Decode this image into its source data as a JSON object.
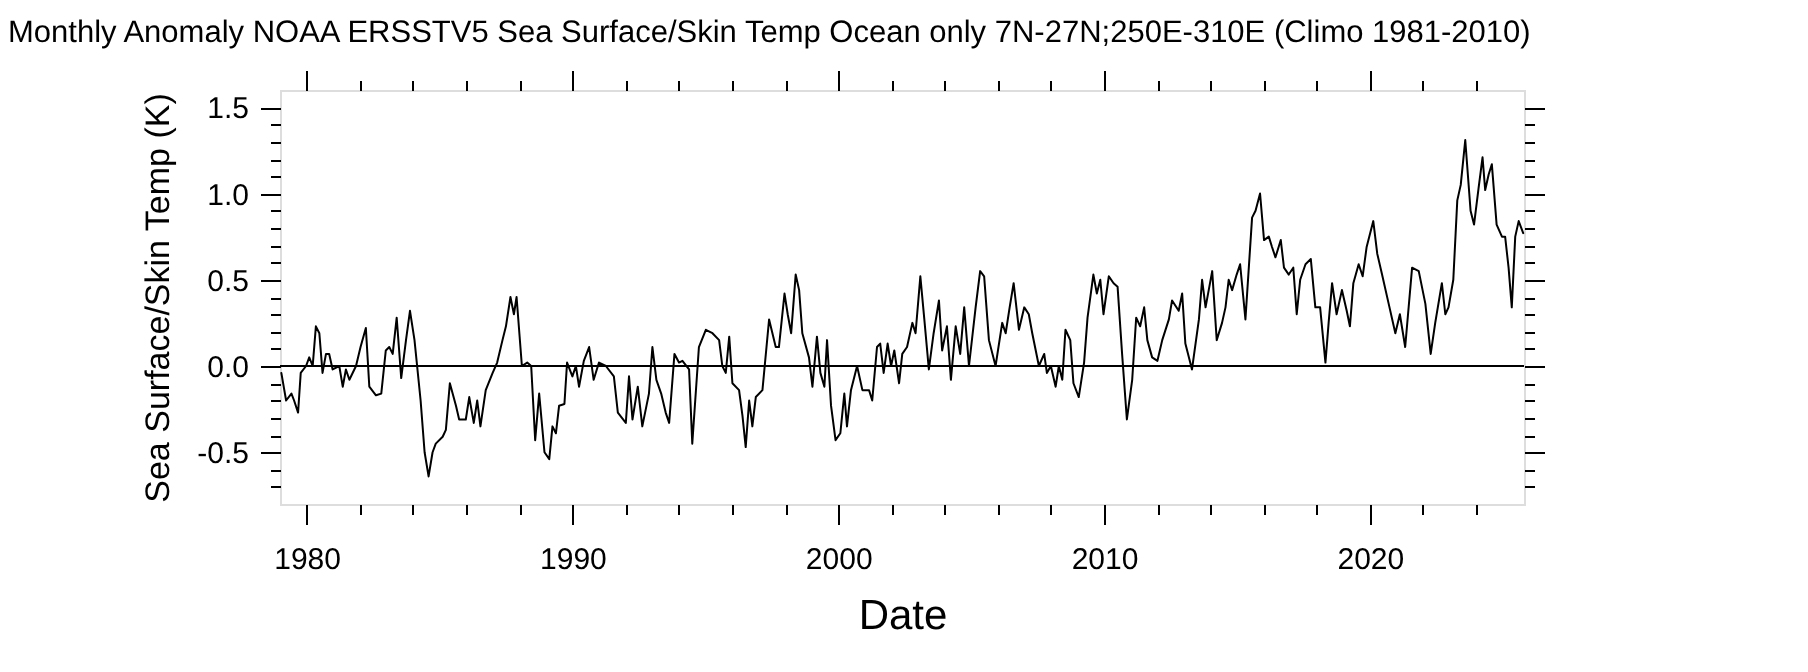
{
  "chart_data": {
    "type": "line",
    "title": "Monthly Anomaly NOAA ERSSTV5   Sea Surface/Skin Temp Ocean only 7N-27N;250E-310E (Climo 1981-2010)",
    "xlabel": "Date",
    "ylabel": "Sea Surface/Skin Temp (K)",
    "xlim": [
      1979.0,
      2025.8
    ],
    "ylim": [
      -0.8,
      1.6
    ],
    "xticks": [
      1980,
      {
        "value": 1982,
        "label": null
      },
      {
        "value": 1984,
        "label": null
      },
      {
        "value": 1986,
        "label": null
      },
      {
        "value": 1988,
        "label": null
      },
      1990,
      {
        "value": 1992,
        "label": null
      },
      {
        "value": 1994,
        "label": null
      },
      {
        "value": 1996,
        "label": null
      },
      {
        "value": 1998,
        "label": null
      },
      2000,
      {
        "value": 2002,
        "label": null
      },
      {
        "value": 2004,
        "label": null
      },
      {
        "value": 2006,
        "label": null
      },
      {
        "value": 2008,
        "label": null
      },
      2010,
      {
        "value": 2012,
        "label": null
      },
      {
        "value": 2014,
        "label": null
      },
      {
        "value": 2016,
        "label": null
      },
      {
        "value": 2018,
        "label": null
      },
      2020,
      {
        "value": 2022,
        "label": null
      },
      {
        "value": 2024,
        "label": null
      }
    ],
    "yticks": [
      {
        "value": -0.7,
        "label": null
      },
      {
        "value": -0.6,
        "label": null
      },
      {
        "value": -0.5,
        "label": "-0.5"
      },
      {
        "value": -0.4,
        "label": null
      },
      {
        "value": -0.3,
        "label": null
      },
      {
        "value": -0.2,
        "label": null
      },
      {
        "value": -0.1,
        "label": null
      },
      {
        "value": 0,
        "label": "0.0"
      },
      {
        "value": 0.1,
        "label": null
      },
      {
        "value": 0.2,
        "label": null
      },
      {
        "value": 0.3,
        "label": null
      },
      {
        "value": 0.4,
        "label": null
      },
      {
        "value": 0.5,
        "label": "0.5"
      },
      {
        "value": 0.6,
        "label": null
      },
      {
        "value": 0.7,
        "label": null
      },
      {
        "value": 0.8,
        "label": null
      },
      {
        "value": 0.9,
        "label": null
      },
      {
        "value": 1.0,
        "label": "1.0"
      },
      {
        "value": 1.1,
        "label": null
      },
      {
        "value": 1.2,
        "label": null
      },
      {
        "value": 1.3,
        "label": null
      },
      {
        "value": 1.4,
        "label": null
      },
      {
        "value": 1.5,
        "label": "1.5"
      }
    ],
    "grid": false,
    "marker": "none",
    "line_style": "solid",
    "ref_lines": [
      {
        "axis": "y",
        "value": 0,
        "label": null,
        "color": "#000000"
      }
    ],
    "series": [
      {
        "color": "#000000",
        "x": [
          1979.05,
          1979.23,
          1979.43,
          1979.53,
          1979.68,
          1979.78,
          1979.98,
          1980.1,
          1980.23,
          1980.35,
          1980.48,
          1980.6,
          1980.73,
          1980.85,
          1980.98,
          1981.23,
          1981.36,
          1981.48,
          1981.61,
          1981.86,
          1982.03,
          1982.23,
          1982.36,
          1982.61,
          1982.81,
          1982.98,
          1983.11,
          1983.24,
          1983.39,
          1983.56,
          1983.74,
          1983.89,
          1984.06,
          1984.29,
          1984.44,
          1984.59,
          1984.74,
          1984.86,
          1985.12,
          1985.24,
          1985.39,
          1985.62,
          1985.74,
          1985.99,
          1986.12,
          1986.29,
          1986.42,
          1986.54,
          1986.74,
          1987.0,
          1987.17,
          1987.37,
          1987.5,
          1987.67,
          1987.8,
          1987.9,
          1988.1,
          1988.3,
          1988.45,
          1988.6,
          1988.75,
          1988.95,
          1989.13,
          1989.25,
          1989.38,
          1989.5,
          1989.7,
          1989.8,
          1990.0,
          1990.13,
          1990.25,
          1990.43,
          1990.63,
          1990.8,
          1991.0,
          1991.26,
          1991.56,
          1991.71,
          1992.01,
          1992.13,
          1992.26,
          1992.46,
          1992.63,
          1992.88,
          1993.01,
          1993.16,
          1993.34,
          1993.51,
          1993.64,
          1993.84,
          1994.01,
          1994.14,
          1994.39,
          1994.51,
          1994.76,
          1995.02,
          1995.27,
          1995.52,
          1995.64,
          1995.77,
          1995.9,
          1996.02,
          1996.27,
          1996.4,
          1996.52,
          1996.65,
          1996.77,
          1996.9,
          1997.15,
          1997.4,
          1997.65,
          1997.77,
          1997.98,
          1998.1,
          1998.23,
          1998.4,
          1998.53,
          1998.65,
          1998.9,
          1999.03,
          1999.2,
          1999.33,
          1999.48,
          1999.58,
          1999.73,
          1999.9,
          2000.08,
          2000.23,
          2000.33,
          2000.48,
          2000.71,
          2000.91,
          2001.16,
          2001.28,
          2001.46,
          2001.58,
          2001.71,
          2001.86,
          2001.99,
          2002.11,
          2002.29,
          2002.41,
          2002.59,
          2002.79,
          2002.91,
          2003.09,
          2003.24,
          2003.41,
          2003.59,
          2003.79,
          2003.91,
          2004.09,
          2004.24,
          2004.42,
          2004.59,
          2004.74,
          2004.92,
          2005.17,
          2005.34,
          2005.49,
          2005.67,
          2005.92,
          2006.17,
          2006.3,
          2006.45,
          2006.6,
          2006.8,
          2007.0,
          2007.17,
          2007.3,
          2007.55,
          2007.75,
          2007.85,
          2008.0,
          2008.18,
          2008.3,
          2008.43,
          2008.55,
          2008.73,
          2008.85,
          2009.05,
          2009.25,
          2009.38,
          2009.6,
          2009.73,
          2009.86,
          2009.98,
          2010.18,
          2010.36,
          2010.51,
          2010.68,
          2010.86,
          2011.06,
          2011.21,
          2011.36,
          2011.51,
          2011.63,
          2011.81,
          2012.01,
          2012.19,
          2012.44,
          2012.56,
          2012.81,
          2012.94,
          2013.06,
          2013.31,
          2013.57,
          2013.69,
          2013.82,
          2014.07,
          2014.24,
          2014.44,
          2014.57,
          2014.69,
          2014.82,
          2014.99,
          2015.12,
          2015.32,
          2015.57,
          2015.7,
          2015.87,
          2016.02,
          2016.2,
          2016.32,
          2016.45,
          2016.65,
          2016.77,
          2016.95,
          2017.12,
          2017.25,
          2017.38,
          2017.58,
          2017.78,
          2017.95,
          2018.13,
          2018.33,
          2018.45,
          2018.58,
          2018.75,
          2018.95,
          2019.13,
          2019.25,
          2019.38,
          2019.58,
          2019.73,
          2019.88,
          2020.13,
          2020.28,
          2020.46,
          2020.71,
          2020.96,
          2021.13,
          2021.33,
          2021.59,
          2021.84,
          2022.09,
          2022.29,
          2022.46,
          2022.71,
          2022.84,
          2022.96,
          2023.14,
          2023.29,
          2023.42,
          2023.59,
          2023.79,
          2023.92,
          2024.09,
          2024.24,
          2024.34,
          2024.47,
          2024.59,
          2024.77,
          2024.97,
          2025.09,
          2025.22,
          2025.34,
          2025.47,
          2025.6,
          2025.77
        ],
        "values": [
          -0.04,
          -0.2,
          -0.16,
          -0.2,
          -0.27,
          -0.04,
          0.0,
          0.05,
          0.0,
          0.23,
          0.19,
          -0.04,
          0.07,
          0.07,
          -0.02,
          0.0,
          -0.12,
          -0.02,
          -0.08,
          0.0,
          0.11,
          0.22,
          -0.12,
          -0.17,
          -0.16,
          0.09,
          0.11,
          0.07,
          0.28,
          -0.07,
          0.15,
          0.32,
          0.15,
          -0.2,
          -0.5,
          -0.64,
          -0.5,
          -0.45,
          -0.41,
          -0.37,
          -0.1,
          -0.23,
          -0.31,
          -0.31,
          -0.18,
          -0.33,
          -0.2,
          -0.35,
          -0.14,
          -0.04,
          0.02,
          0.15,
          0.23,
          0.4,
          0.3,
          0.4,
          0.0,
          0.02,
          0.0,
          -0.43,
          -0.16,
          -0.5,
          -0.54,
          -0.35,
          -0.39,
          -0.23,
          -0.22,
          0.02,
          -0.06,
          0.0,
          -0.12,
          0.03,
          0.11,
          -0.08,
          0.02,
          0.0,
          -0.06,
          -0.27,
          -0.33,
          -0.06,
          -0.31,
          -0.12,
          -0.35,
          -0.16,
          0.11,
          -0.08,
          -0.16,
          -0.27,
          -0.33,
          0.07,
          0.02,
          0.03,
          -0.02,
          -0.45,
          0.11,
          0.21,
          0.19,
          0.15,
          0.0,
          -0.04,
          0.17,
          -0.1,
          -0.14,
          -0.29,
          -0.47,
          -0.2,
          -0.35,
          -0.18,
          -0.14,
          0.27,
          0.11,
          0.11,
          0.42,
          0.3,
          0.19,
          0.53,
          0.44,
          0.19,
          0.05,
          -0.12,
          0.17,
          -0.04,
          -0.12,
          0.15,
          -0.23,
          -0.43,
          -0.39,
          -0.16,
          -0.35,
          -0.14,
          0.0,
          -0.14,
          -0.14,
          -0.2,
          0.11,
          0.13,
          -0.04,
          0.13,
          0.0,
          0.09,
          -0.1,
          0.07,
          0.11,
          0.25,
          0.19,
          0.52,
          0.27,
          -0.02,
          0.19,
          0.38,
          0.09,
          0.23,
          -0.08,
          0.23,
          0.07,
          0.34,
          0.0,
          0.34,
          0.55,
          0.52,
          0.15,
          0.0,
          0.25,
          0.19,
          0.34,
          0.48,
          0.21,
          0.34,
          0.3,
          0.19,
          0.0,
          0.07,
          -0.04,
          0.0,
          -0.12,
          0.0,
          -0.08,
          0.21,
          0.15,
          -0.1,
          -0.18,
          0.02,
          0.28,
          0.53,
          0.42,
          0.5,
          0.3,
          0.52,
          0.48,
          0.46,
          0.07,
          -0.31,
          -0.08,
          0.28,
          0.23,
          0.34,
          0.15,
          0.05,
          0.03,
          0.15,
          0.27,
          0.38,
          0.32,
          0.42,
          0.13,
          -0.02,
          0.27,
          0.5,
          0.34,
          0.55,
          0.15,
          0.25,
          0.34,
          0.5,
          0.44,
          0.53,
          0.59,
          0.27,
          0.86,
          0.9,
          1.0,
          0.73,
          0.75,
          0.69,
          0.63,
          0.73,
          0.57,
          0.53,
          0.57,
          0.3,
          0.5,
          0.59,
          0.62,
          0.34,
          0.34,
          0.02,
          0.25,
          0.48,
          0.3,
          0.44,
          0.32,
          0.23,
          0.48,
          0.59,
          0.52,
          0.69,
          0.84,
          0.65,
          0.53,
          0.36,
          0.19,
          0.3,
          0.11,
          0.57,
          0.55,
          0.36,
          0.07,
          0.25,
          0.48,
          0.3,
          0.34,
          0.5,
          0.96,
          1.05,
          1.31,
          0.9,
          0.82,
          1.03,
          1.21,
          1.02,
          1.11,
          1.17,
          0.82,
          0.75,
          0.75,
          0.57,
          0.34,
          0.75,
          0.84,
          0.77
        ]
      }
    ]
  }
}
